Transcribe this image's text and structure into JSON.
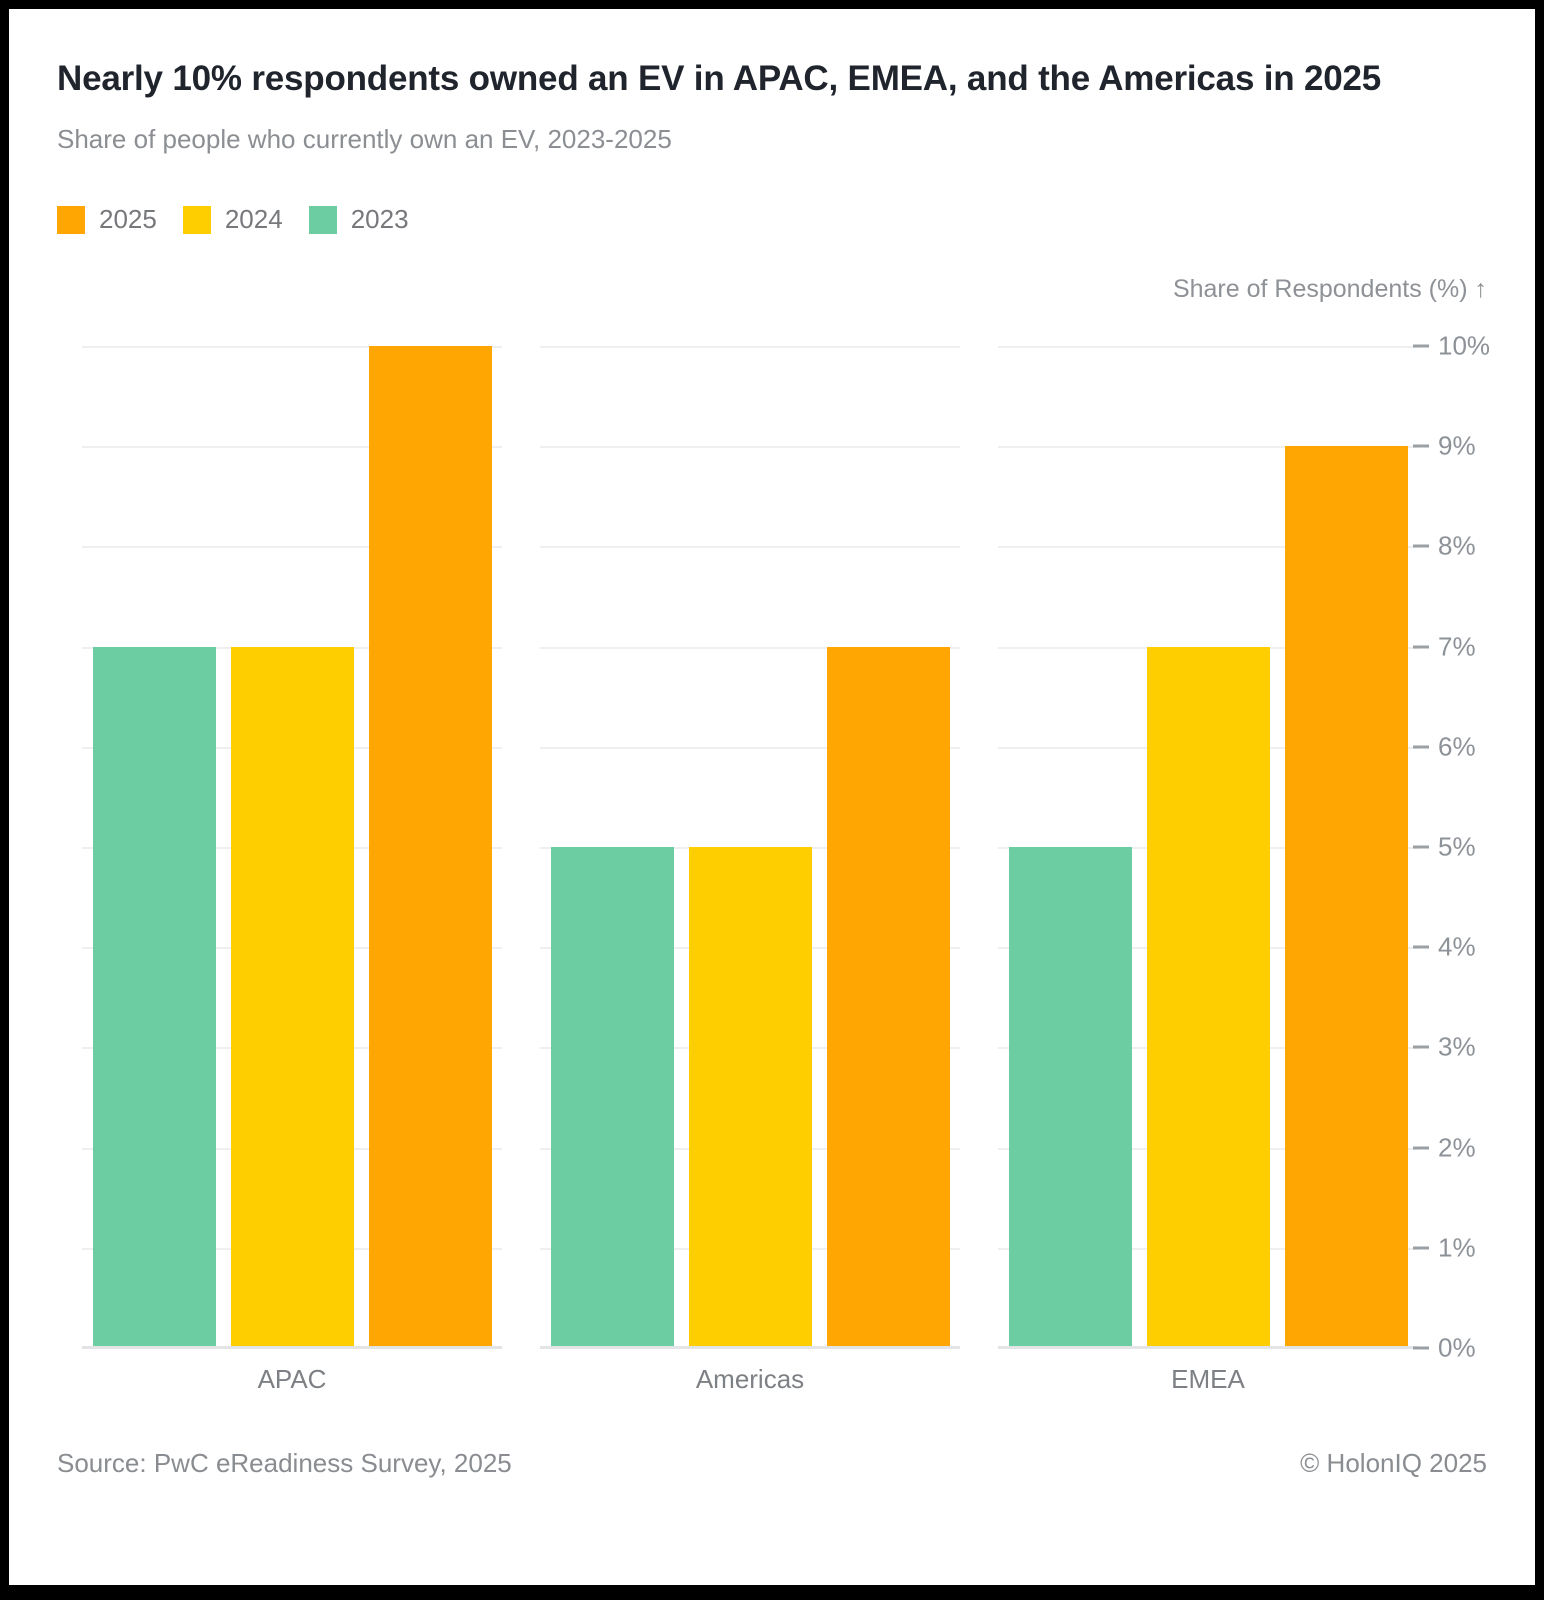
{
  "header": {
    "title": "Nearly 10% respondents owned an EV in APAC, EMEA, and the Americas in 2025",
    "subtitle": "Share of people who currently own an EV, 2023-2025"
  },
  "chart_data": {
    "type": "bar",
    "title": "Nearly 10% respondents owned an EV in APAC, EMEA, and the Americas in 2025",
    "subtitle": "Share of people who currently own an EV, 2023-2025",
    "categories": [
      "APAC",
      "Americas",
      "EMEA"
    ],
    "series": [
      {
        "name": "2025",
        "color": "#FFA602",
        "values": [
          10,
          7,
          9
        ]
      },
      {
        "name": "2024",
        "color": "#FFCE00",
        "values": [
          7,
          5,
          7
        ]
      },
      {
        "name": "2023",
        "color": "#6DCDA2",
        "values": [
          7,
          5,
          5
        ]
      }
    ],
    "legend_order": [
      "2025",
      "2024",
      "2023"
    ],
    "bar_order_within_group": [
      "2023",
      "2024",
      "2025"
    ],
    "ylabel": "Share of Respondents (%) ↑",
    "ylim": [
      0,
      10
    ],
    "ytick_step": 1,
    "ytick_suffix": "%",
    "y_axis_side": "right",
    "legend_position": "top-left",
    "grid": true
  },
  "colors": {
    "frame": "#000000",
    "card_background": "#FFFFFF",
    "gridline": "#EFEFEF",
    "baseline": "#E3E4E6",
    "title_text": "#20252D",
    "muted_text": "#8B8E92"
  },
  "footer": {
    "source": "Source: PwC eReadiness Survey, 2025",
    "copyright": "© HolonIQ 2025"
  }
}
